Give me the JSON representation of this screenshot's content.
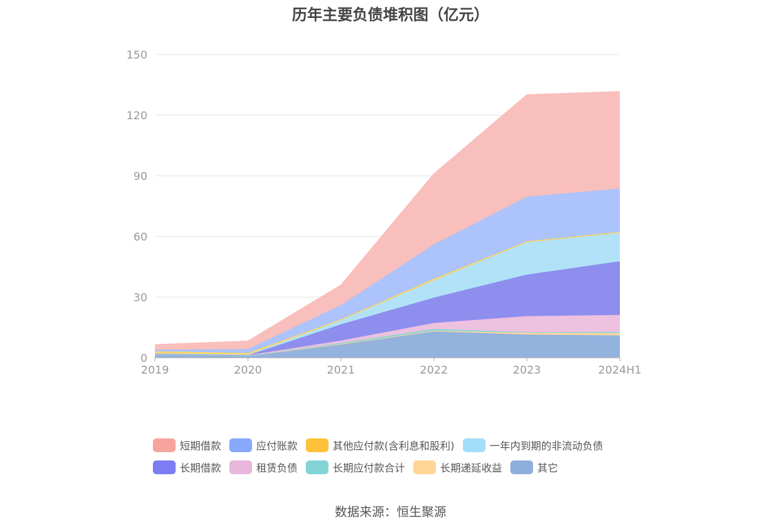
{
  "chart_data": {
    "type": "area",
    "title": "历年主要负债堆积图（亿元）",
    "x": [
      "2019",
      "2020",
      "2021",
      "2022",
      "2023",
      "2024H1"
    ],
    "ylim": [
      0,
      150
    ],
    "yticks": [
      0,
      30,
      60,
      90,
      120,
      150
    ],
    "grid": true,
    "stacked": true,
    "legend_position": "bottom",
    "series": [
      {
        "name": "其它",
        "color": "#8eaedc",
        "values": [
          1.5,
          0.8,
          6.5,
          13.0,
          11.5,
          11.0
        ]
      },
      {
        "name": "长期递延收益",
        "color": "#ffd59a",
        "values": [
          0.3,
          0.2,
          0.3,
          0.4,
          0.8,
          1.2
        ]
      },
      {
        "name": "长期应付款合计",
        "color": "#80d6d6",
        "values": [
          0.0,
          0.0,
          0.5,
          0.8,
          0.3,
          0.5
        ]
      },
      {
        "name": "租赁负债",
        "color": "#ecbede",
        "values": [
          0.2,
          0.2,
          1.2,
          3.0,
          8.0,
          8.5
        ]
      },
      {
        "name": "长期借款",
        "color": "#8888ee",
        "values": [
          0.0,
          0.0,
          8.0,
          12.5,
          20.5,
          26.5
        ]
      },
      {
        "name": "一年内到期的非流动负债",
        "color": "#ade0f7",
        "values": [
          0.2,
          0.3,
          2.0,
          8.5,
          16.0,
          14.0
        ]
      },
      {
        "name": "其他应付款(含利息和股利)",
        "color": "#ffd45c",
        "values": [
          1.0,
          0.8,
          0.5,
          0.8,
          0.5,
          0.5
        ]
      },
      {
        "name": "应付账款",
        "color": "#a8c1fb",
        "values": [
          0.8,
          2.0,
          7.0,
          17.0,
          22.0,
          21.5
        ]
      },
      {
        "name": "短期借款",
        "color": "#f9bcb8",
        "values": [
          2.5,
          4.0,
          10.0,
          35.0,
          50.5,
          48.0
        ]
      }
    ]
  },
  "legend": [
    [
      {
        "name": "短期借款",
        "color": "#f8a49e"
      },
      {
        "name": "应付账款",
        "color": "#88a8fa"
      },
      {
        "name": "其他应付款(含利息和股利)",
        "color": "#fec13a"
      },
      {
        "name": "一年内到期的非流动负债",
        "color": "#a4ddf9"
      }
    ],
    [
      {
        "name": "长期借款",
        "color": "#7c7df2"
      },
      {
        "name": "租赁负债",
        "color": "#e9b7dc"
      },
      {
        "name": "长期应付款合计",
        "color": "#84d4d7"
      },
      {
        "name": "长期递延收益",
        "color": "#ffd695"
      },
      {
        "name": "其它",
        "color": "#8eaedd"
      }
    ]
  ],
  "source": "数据来源：恒生聚源"
}
